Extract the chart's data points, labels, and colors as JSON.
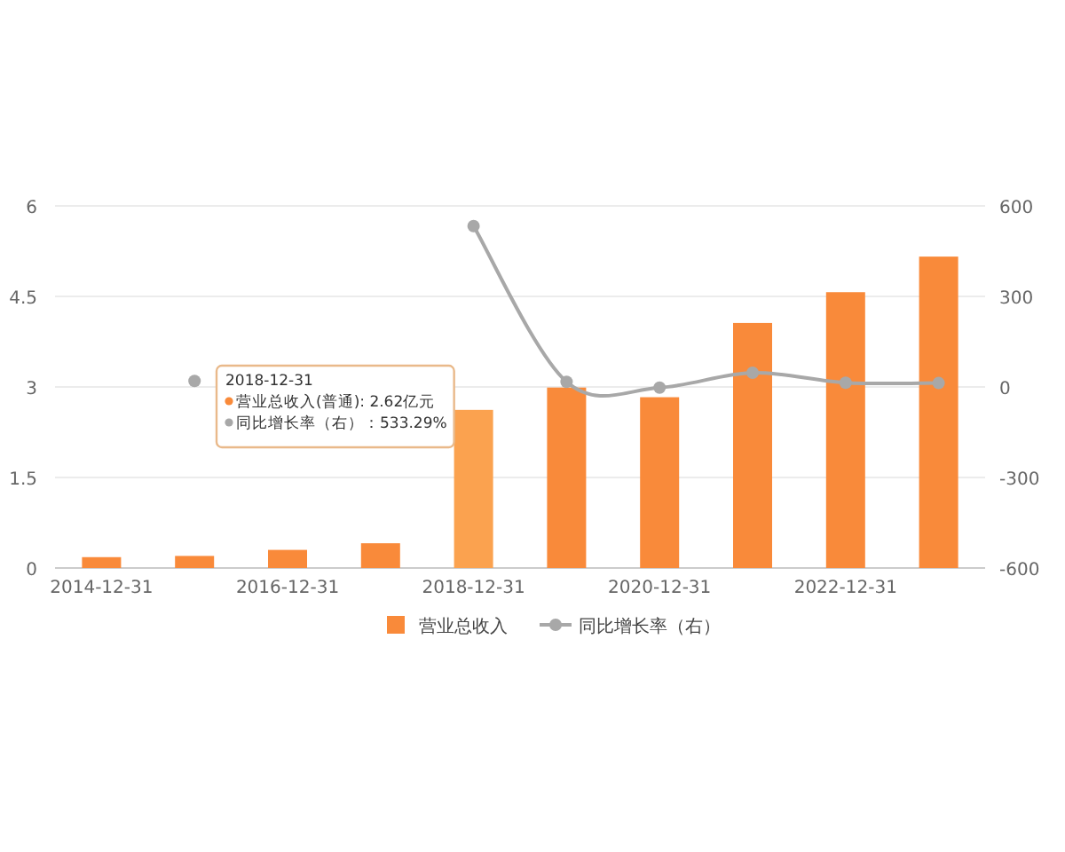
{
  "chart_data": {
    "type": "bar",
    "categories": [
      "2014-12-31",
      null,
      "2016-12-31",
      null,
      "2018-12-31",
      null,
      "2020-12-31",
      null,
      "2022-12-31",
      null
    ],
    "series": [
      {
        "name": "营业总收入",
        "color": "#f98a3a",
        "colors": [
          "#f98a3a",
          "#f98a3a",
          "#f98a3a",
          "#f98a3a",
          "#fba24f",
          "#f98a3a",
          "#f98a3a",
          "#f98a3a",
          "#f98a3a",
          "#f98a3a"
        ],
        "values": [
          0.18,
          0.2,
          0.3,
          0.41,
          2.62,
          2.99,
          2.83,
          4.06,
          4.57,
          5.16
        ]
      },
      {
        "name": "同比增长率（右）",
        "type": "line",
        "axis": "y2",
        "color": "#a8a8a8",
        "values": [
          null,
          20,
          null,
          null,
          533.29,
          17,
          -2,
          47,
          14,
          13
        ]
      }
    ],
    "ylim": [
      0,
      6
    ],
    "yticks": [
      0,
      1.5,
      3,
      4.5,
      6
    ],
    "y2lim": [
      -600,
      600
    ],
    "y2ticks": [
      -600,
      -300,
      0,
      300,
      600
    ],
    "grid": "y",
    "legend": "bottom",
    "marker": "circle",
    "annotations": [
      "2018-12-31",
      "营业总收入(普通): 2.62亿元",
      "同比增长率（右）：533.29%"
    ]
  }
}
